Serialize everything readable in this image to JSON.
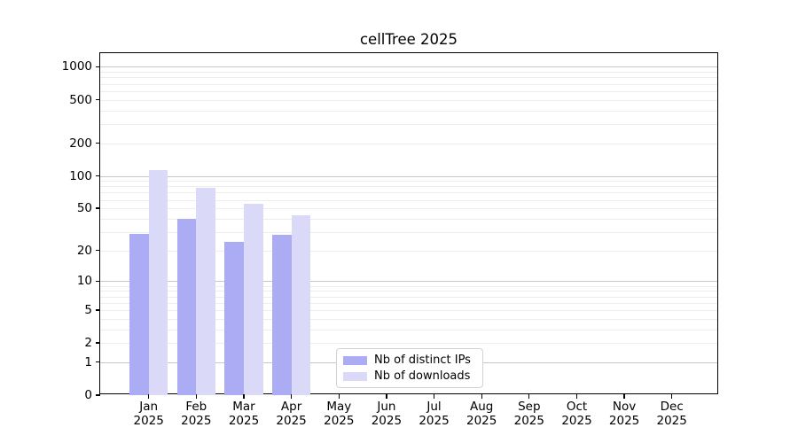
{
  "figure": {
    "background": "#ffffff"
  },
  "chart_data": {
    "type": "bar",
    "title": "cellTree 2025",
    "categories": [
      "Jan 2025",
      "Feb 2025",
      "Mar 2025",
      "Apr 2025",
      "May 2025",
      "Jun 2025",
      "Jul 2025",
      "Aug 2025",
      "Sep 2025",
      "Oct 2025",
      "Nov 2025",
      "Dec 2025"
    ],
    "x_month_labels": [
      "Jan",
      "Feb",
      "Mar",
      "Apr",
      "May",
      "Jun",
      "Jul",
      "Aug",
      "Sep",
      "Oct",
      "Nov",
      "Dec"
    ],
    "x_year_label": "2025",
    "series": [
      {
        "name": "Nb of distinct IPs",
        "color": "#acacf4",
        "values": [
          29,
          40,
          24,
          28,
          0,
          0,
          0,
          0,
          0,
          0,
          0,
          0
        ]
      },
      {
        "name": "Nb of downloads",
        "color": "#dadaf8",
        "values": [
          114,
          78,
          55,
          43,
          0,
          0,
          0,
          0,
          0,
          0,
          0,
          0
        ]
      }
    ],
    "xlabel": "",
    "ylabel": "",
    "y_ticks": [
      0,
      1,
      2,
      5,
      10,
      20,
      50,
      100,
      200,
      500,
      1000
    ],
    "y_scale": "log10(1+y)",
    "ylim": [
      0,
      1310
    ],
    "grid": {
      "orientation": "horizontal",
      "major_at": [
        1,
        10,
        100,
        1000
      ],
      "minor_per_decade": [
        2,
        3,
        4,
        5,
        6,
        7,
        8,
        9
      ],
      "major_color": "#c6c6c6",
      "minor_color": "#ededed"
    },
    "legend_position": "inside-bottom-center"
  },
  "legend": {
    "items": [
      {
        "label": "Nb of distinct IPs",
        "color": "#acacf4"
      },
      {
        "label": "Nb of downloads",
        "color": "#dadaf8"
      }
    ]
  }
}
